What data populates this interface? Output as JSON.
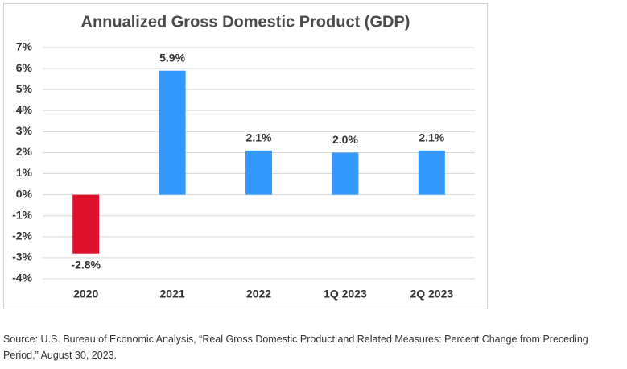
{
  "chart_data": {
    "type": "bar",
    "title": "Annualized Gross Domestic Product (GDP)",
    "categories": [
      "2020",
      "2021",
      "2022",
      "1Q 2023",
      "2Q 2023"
    ],
    "values": [
      -2.8,
      5.9,
      2.1,
      2.0,
      2.1
    ],
    "value_labels": [
      "-2.8%",
      "5.9%",
      "2.1%",
      "2.0%",
      "2.1%"
    ],
    "colors": [
      "#e0112b",
      "#3399ff",
      "#3399ff",
      "#3399ff",
      "#3399ff"
    ],
    "ylim": [
      -4,
      7
    ],
    "yticks": [
      {
        "value": -4,
        "label": "-4%"
      },
      {
        "value": -3,
        "label": "-3%"
      },
      {
        "value": -2,
        "label": "-2%"
      },
      {
        "value": -1,
        "label": "-1%"
      },
      {
        "value": 0,
        "label": "0%"
      },
      {
        "value": 1,
        "label": "1%"
      },
      {
        "value": 2,
        "label": "2%"
      },
      {
        "value": 3,
        "label": "3%"
      },
      {
        "value": 4,
        "label": "4%"
      },
      {
        "value": 5,
        "label": "5%"
      },
      {
        "value": 6,
        "label": "6%"
      },
      {
        "value": 7,
        "label": "7%"
      }
    ],
    "grid": true,
    "source": "Source: U.S. Bureau of Economic Analysis, “Real Gross Domestic Product and Related Measures: Percent Change from Preceding Period,” August 30, 2023."
  }
}
